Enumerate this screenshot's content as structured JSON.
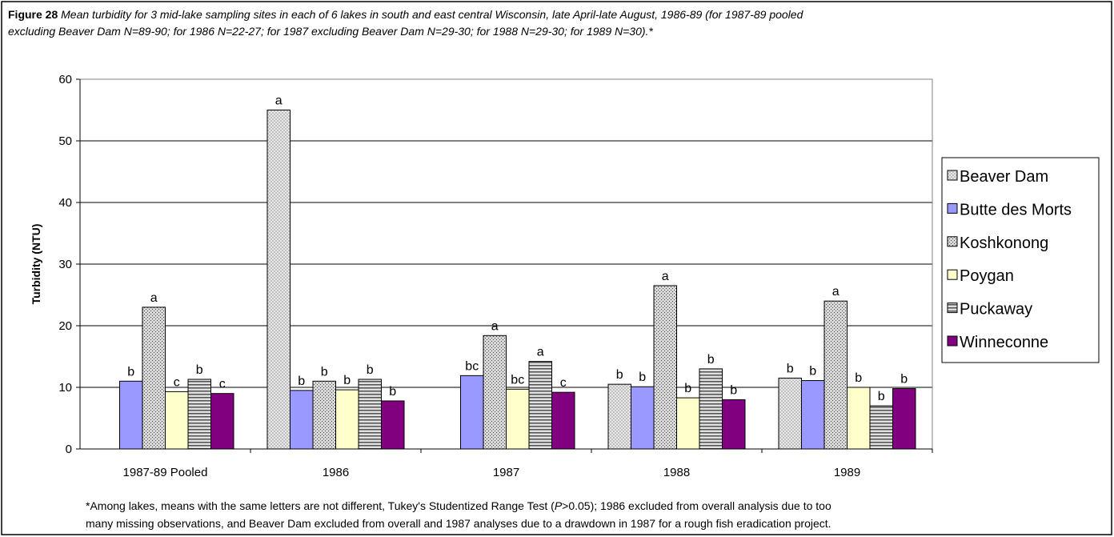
{
  "chart_data": {
    "type": "bar",
    "figure_label": "Figure  28",
    "title": [
      "Mean turbidity for 3 mid-lake sampling sites in each of 6 lakes in south and east central Wisconsin, late April-late August, 1986-89 (for 1987-89 pooled",
      "excluding Beaver Dam N=89-90; for 1986 N=22-27; for 1987 excluding Beaver Dam N=29-30; for 1988 N=29-30; for 1989 N=30).*"
    ],
    "y_label": "Turbidity (NTU)",
    "categories": [
      "1987-89 Pooled",
      "1986",
      "1987",
      "1988",
      "1989"
    ],
    "series": [
      {
        "name": "Beaver Dam",
        "color": "#c0c0c0",
        "pattern": "dots",
        "values": [
          null,
          55,
          null,
          10.5,
          11.5
        ],
        "letters": [
          null,
          "a",
          null,
          "b",
          "b"
        ]
      },
      {
        "name": "Butte des Morts",
        "color": "#9999ff",
        "pattern": "none",
        "values": [
          11,
          9.5,
          11.9,
          10.1,
          11.1
        ],
        "letters": [
          "b",
          "b",
          "bc",
          "b",
          "b"
        ]
      },
      {
        "name": "Koshkonong",
        "color": "#a0a0a0",
        "pattern": "cross",
        "values": [
          23,
          11,
          18.4,
          26.5,
          24
        ],
        "letters": [
          "a",
          "b",
          "a",
          "a",
          "a"
        ]
      },
      {
        "name": "Poygan",
        "color": "#ffffcc",
        "pattern": "none",
        "values": [
          9.3,
          9.6,
          9.7,
          8.3,
          10
        ],
        "letters": [
          "c",
          "b",
          "bc",
          "b",
          "b"
        ]
      },
      {
        "name": "Puckaway",
        "color": "#909090",
        "pattern": "hlines",
        "values": [
          11.3,
          11.3,
          14.2,
          13,
          7
        ],
        "letters": [
          "b",
          "b",
          "a",
          "b",
          "b"
        ]
      },
      {
        "name": "Winneconne",
        "color": "#800080",
        "pattern": "none",
        "values": [
          9,
          7.8,
          9.2,
          8,
          9.8
        ],
        "letters": [
          "c",
          "b",
          "c",
          "b",
          "b"
        ]
      }
    ],
    "ylim": [
      0,
      60
    ],
    "yticks": [
      0,
      10,
      20,
      30,
      40,
      50,
      60
    ],
    "grid": true,
    "legend": "right",
    "footnote": [
      [
        "*Among lakes, means with the same letters are not different, Tukey's Studentized Range Test (",
        "P",
        ">0.05); 1986 excluded from overall analysis due to too"
      ],
      "many missing observations, and Beaver Dam excluded from overall and 1987 analyses due to a drawdown in 1987 for a rough fish eradication project."
    ]
  }
}
